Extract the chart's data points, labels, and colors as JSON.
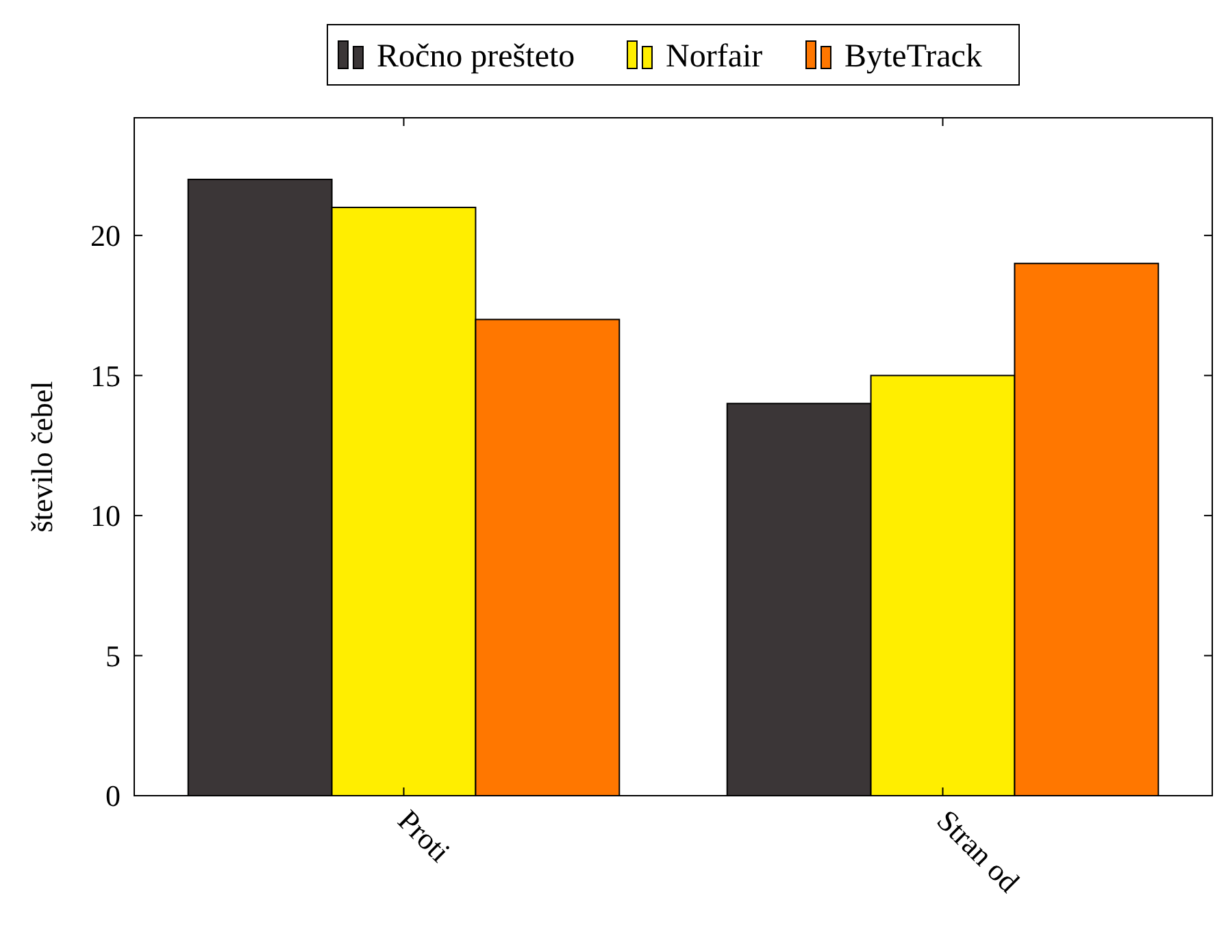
{
  "chart_data": {
    "type": "bar",
    "ylabel": "število čebel",
    "categories": [
      "Proti",
      "Stran od"
    ],
    "series": [
      {
        "name": "Ročno prešteto",
        "color": "#3b3637",
        "values": [
          22,
          14
        ]
      },
      {
        "name": "Norfair",
        "color": "#ffee00",
        "values": [
          21,
          15
        ]
      },
      {
        "name": "ByteTrack",
        "color": "#ff7700",
        "values": [
          17,
          19
        ]
      }
    ],
    "ylim": [
      0,
      24.2
    ],
    "yticks": [
      0,
      5,
      10,
      15,
      20
    ],
    "legend": "top",
    "grid": false
  }
}
